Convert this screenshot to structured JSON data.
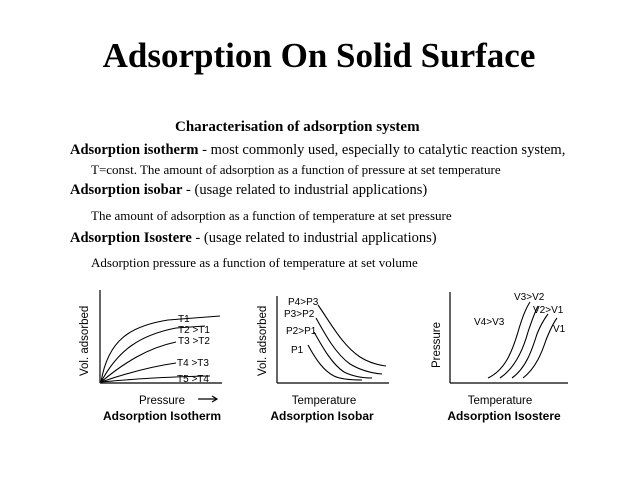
{
  "title": "Adsorption On Solid Surface",
  "subtitle": "Characterisation of adsorption system",
  "items": [
    {
      "term": "Adsorption isotherm",
      "note": " - most commonly used, especially to catalytic reaction system,",
      "desc": "T=const. The amount of adsorption as a function of pressure at set temperature"
    },
    {
      "term": "Adsorption isobar",
      "note": " - (usage related to industrial applications)",
      "desc": "The amount of adsorption as a function of temperature at set pressure"
    },
    {
      "term": "Adsorption Isostere",
      "note": " - (usage related to industrial applications)",
      "desc": "Adsorption pressure as a function of temperature at set volume"
    }
  ],
  "diagrams": {
    "isotherm": {
      "ylabel": "Vol. adsorbed",
      "xlabel": "Pressure",
      "caption": "Adsorption Isotherm",
      "curves": [
        "T1",
        "T2 >T1",
        "T3 >T2",
        "T4 >T3",
        "T5 >T4"
      ]
    },
    "isobar": {
      "ylabel": "Vol. adsorbed",
      "xlabel": "Temperature",
      "caption": "Adsorption Isobar",
      "curves": [
        "P4>P3",
        "P3>P2",
        "P2>P1",
        "P1"
      ]
    },
    "isostere": {
      "ylabel": "Pressure",
      "xlabel": "Temperature",
      "caption": "Adsorption Isostere",
      "curves": [
        "V3>V2",
        "V2>V1",
        "V4>V3",
        "V1"
      ]
    }
  }
}
